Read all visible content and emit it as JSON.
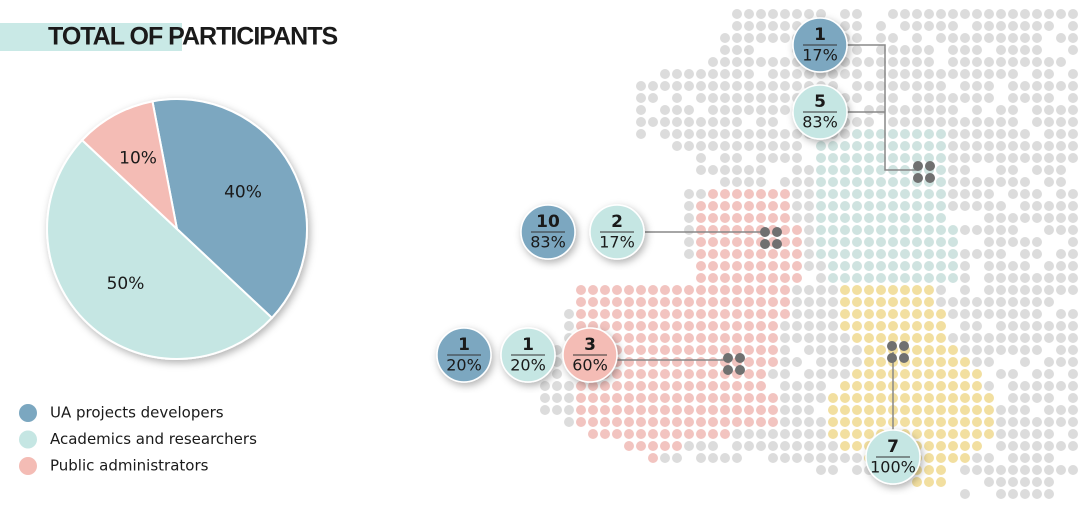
{
  "chart_data": {
    "type": "pie",
    "title": "TOTAL OF PARTICIPANTS",
    "categories": [
      "UA projects developers",
      "Academics and researchers",
      "Public administrators"
    ],
    "values": [
      40,
      50,
      10
    ],
    "value_labels": [
      "40%",
      "50%",
      "10%"
    ],
    "colors": [
      "#7ba7c0",
      "#c5e6e3",
      "#f4bcb5"
    ]
  },
  "map": {
    "callouts": [
      {
        "count": "1",
        "share": "17%",
        "color": "#7ba7c0"
      },
      {
        "count": "5",
        "share": "83%",
        "color": "#c5e6e3"
      },
      {
        "count": "10",
        "share": "83%",
        "color": "#7ba7c0"
      },
      {
        "count": "2",
        "share": "17%",
        "color": "#c5e6e3"
      },
      {
        "count": "1",
        "share": "20%",
        "color": "#7ba7c0"
      },
      {
        "count": "1",
        "share": "20%",
        "color": "#c5e6e3"
      },
      {
        "count": "3",
        "share": "60%",
        "color": "#f4bcb5"
      },
      {
        "count": "7",
        "share": "100%",
        "color": "#c5e6e3"
      }
    ]
  }
}
